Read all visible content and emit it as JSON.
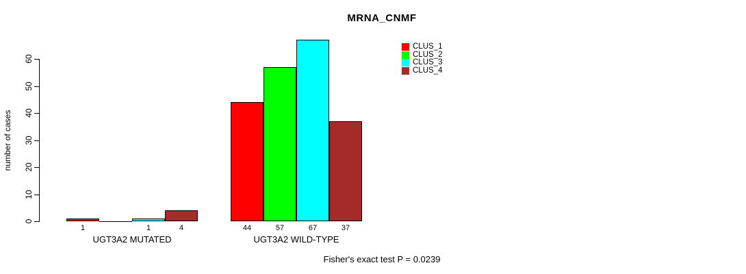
{
  "chart_data": {
    "type": "bar",
    "title": "MRNA_CNMF",
    "xlabel": "",
    "ylabel": "number of cases",
    "yticks": [
      0,
      10,
      20,
      30,
      40,
      50,
      60
    ],
    "ylim": [
      0,
      67
    ],
    "grid": false,
    "legend_position": "top-right",
    "categories": [
      "UGT3A2 MUTATED",
      "UGT3A2 WILD-TYPE"
    ],
    "series": [
      {
        "name": "CLUS_1",
        "color": "#ff0000",
        "values": [
          1,
          44
        ]
      },
      {
        "name": "CLUS_2",
        "color": "#00ff00",
        "values": [
          0,
          57
        ]
      },
      {
        "name": "CLUS_3",
        "color": "#00ffff",
        "values": [
          1,
          67
        ]
      },
      {
        "name": "CLUS_4",
        "color": "#a52a2a",
        "values": [
          4,
          37
        ]
      }
    ],
    "groups": [
      {
        "label": "UGT3A2 MUTATED",
        "values": [
          1,
          0,
          1,
          4
        ],
        "bar_labels": [
          "1",
          "",
          "1",
          "4"
        ]
      },
      {
        "label": "UGT3A2 WILD-TYPE",
        "values": [
          44,
          57,
          67,
          37
        ],
        "bar_labels": [
          "44",
          "57",
          "67",
          "37"
        ]
      }
    ],
    "annotation": "Fisher's exact test P = 0.0239"
  },
  "colors": {
    "background": "#ffffff",
    "axis": "#000000",
    "text": "#000000",
    "clus_1": "#ff0000",
    "clus_2": "#00ff00",
    "clus_3": "#00ffff",
    "clus_4": "#a52a2a"
  }
}
